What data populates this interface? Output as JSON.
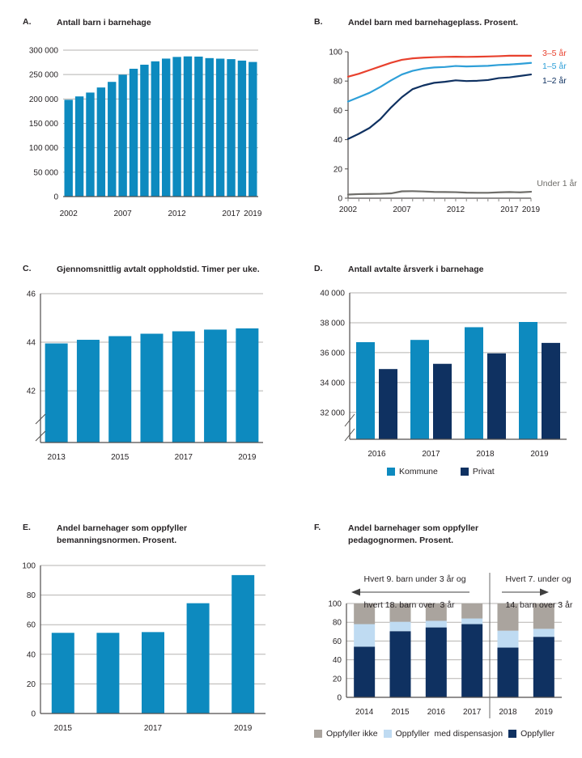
{
  "colors": {
    "bar_blue": "#0d8abf",
    "navy": "#0f3161",
    "red": "#e8412e",
    "light_blue_line": "#2e9fd8",
    "pale_blue": "#bfdbf2",
    "warm_gray": "#aaa49e",
    "gray_line": "#6e6d69",
    "grid": "#b5b3b1",
    "axis": "#514e4d",
    "text": "#272325"
  },
  "panels": [
    {
      "id": "A",
      "letter": "A.",
      "title": "Antall barn i barnehage"
    },
    {
      "id": "B",
      "letter": "B.",
      "title": "Andel barn med barnehageplass. Prosent."
    },
    {
      "id": "C",
      "letter": "C.",
      "title": "Gjennomsnittlig avtalt oppholdstid. Timer per uke."
    },
    {
      "id": "D",
      "letter": "D.",
      "title": "Antall avtalte årsverk i barnehage"
    },
    {
      "id": "E",
      "letter": "E.",
      "title": "Andel barnehager som oppfyller bemanningsnormen. Prosent."
    },
    {
      "id": "F",
      "letter": "F.",
      "title": "Andel barnehager som oppfyller pedagognormen. Prosent."
    }
  ],
  "chart_data": [
    {
      "id": "A",
      "type": "bar",
      "title": "Antall barn i barnehage",
      "categories": [
        "2002",
        "2003",
        "2004",
        "2005",
        "2006",
        "2007",
        "2008",
        "2009",
        "2010",
        "2011",
        "2012",
        "2013",
        "2014",
        "2015",
        "2016",
        "2017",
        "2018",
        "2019"
      ],
      "values": [
        198300,
        205200,
        213100,
        223500,
        235000,
        249700,
        261900,
        270200,
        277100,
        282700,
        286100,
        287200,
        286800,
        283700,
        282600,
        281600,
        278600,
        275800
      ],
      "ylim": [
        0,
        300000
      ],
      "ytick_values": [
        0,
        50000,
        100000,
        150000,
        200000,
        250000,
        300000
      ],
      "ytick_labels": [
        "0",
        "50 000",
        "100 000",
        "150 000",
        "200 000",
        "250 000",
        "300 000"
      ],
      "xtick_shown": [
        "2002",
        "2007",
        "2012",
        "2017",
        "2019"
      ],
      "grid": true,
      "bar_color_key": "bar_blue"
    },
    {
      "id": "B",
      "type": "line",
      "title": "Andel barn med barnehageplass. Prosent.",
      "x": [
        "2002",
        "2003",
        "2004",
        "2005",
        "2006",
        "2007",
        "2008",
        "2009",
        "2010",
        "2011",
        "2012",
        "2013",
        "2014",
        "2015",
        "2016",
        "2017",
        "2018",
        "2019"
      ],
      "series": [
        {
          "name": "3–5 år",
          "color": "#e8412e",
          "values": [
            83,
            85,
            87.5,
            90,
            92.5,
            94.5,
            95.5,
            96,
            96.3,
            96.5,
            96.6,
            96.5,
            96.6,
            96.8,
            97,
            97.3,
            97.3,
            97.3
          ]
        },
        {
          "name": "1–5 år",
          "color": "#2e9fd8",
          "values": [
            66,
            69,
            72,
            76,
            80.5,
            84.5,
            87,
            88.5,
            89.3,
            89.6,
            90.3,
            90,
            90.2,
            90.4,
            91,
            91.3,
            91.8,
            92.4
          ]
        },
        {
          "name": "1–2 år",
          "color": "#0f3161",
          "values": [
            40.5,
            44,
            48,
            54,
            62,
            69,
            74.5,
            77,
            78.8,
            79.5,
            80.5,
            80,
            80.2,
            80.7,
            82,
            82.5,
            83.5,
            84.5
          ]
        },
        {
          "name": "Under 1 år",
          "color": "#6e6d69",
          "values": [
            2.5,
            2.8,
            2.9,
            3,
            3.3,
            4.7,
            4.8,
            4.6,
            4.3,
            4.2,
            4.1,
            3.8,
            3.7,
            3.7,
            4,
            4.2,
            4,
            4.4
          ]
        }
      ],
      "ylim": [
        0,
        100
      ],
      "ytick_values": [
        0,
        20,
        40,
        60,
        80,
        100
      ],
      "xtick_shown": [
        "2002",
        "2007",
        "2012",
        "2017",
        "2019"
      ],
      "grid": false,
      "legend_position": "right-of-line-ends"
    },
    {
      "id": "C",
      "type": "bar",
      "title": "Gjennomsnittlig avtalt oppholdstid. Timer per uke.",
      "categories": [
        "2013",
        "2014",
        "2015",
        "2016",
        "2017",
        "2018",
        "2019"
      ],
      "values": [
        43.95,
        44.1,
        44.25,
        44.35,
        44.45,
        44.52,
        44.57
      ],
      "ylim": [
        42,
        46
      ],
      "axis_break": true,
      "ytick_values": [
        42,
        44,
        46
      ],
      "ytick_labels": [
        "42",
        "44",
        "46"
      ],
      "xtick_shown": [
        "2013",
        "2015",
        "2017",
        "2019"
      ],
      "grid": true,
      "bar_color_key": "bar_blue"
    },
    {
      "id": "D",
      "type": "grouped_bar",
      "title": "Antall avtalte årsverk i barnehage",
      "categories": [
        "2016",
        "2017",
        "2018",
        "2019"
      ],
      "series": [
        {
          "name": "Kommune",
          "color": "#0d8abf",
          "values": [
            36700,
            36850,
            37700,
            38050
          ]
        },
        {
          "name": "Privat",
          "color": "#0f3161",
          "values": [
            34900,
            35250,
            35950,
            36650
          ]
        }
      ],
      "ylim": [
        32000,
        40000
      ],
      "axis_break": true,
      "ytick_values": [
        32000,
        34000,
        36000,
        38000,
        40000
      ],
      "ytick_labels": [
        "32 000",
        "34 000",
        "36 000",
        "38 000",
        "40 000"
      ],
      "xtick_shown": [
        "2016",
        "2017",
        "2018",
        "2019"
      ],
      "grid": true,
      "legend_position": "bottom"
    },
    {
      "id": "E",
      "type": "bar",
      "title": "Andel barnehager som oppfyller bemanningsnormen. Prosent.",
      "categories": [
        "2015",
        "2016",
        "2017",
        "2018",
        "2019"
      ],
      "values": [
        54.5,
        54.5,
        55,
        74.5,
        93.5
      ],
      "ylim": [
        0,
        100
      ],
      "ytick_values": [
        0,
        20,
        40,
        60,
        80,
        100
      ],
      "xtick_shown": [
        "2015",
        "2017",
        "2019"
      ],
      "grid": true,
      "bar_color_key": "bar_blue"
    },
    {
      "id": "F",
      "type": "stacked_bar",
      "title": "Andel barnehager som oppfyller pedagognormen. Prosent.",
      "categories": [
        "2014",
        "2015",
        "2016",
        "2017",
        "2018",
        "2019"
      ],
      "series": [
        {
          "name": "Oppfyller",
          "color": "#0f3161",
          "values": [
            54,
            70.5,
            74.5,
            78,
            53,
            64.5
          ]
        },
        {
          "name": "Oppfyller  med dispensasjon",
          "color": "#bfdbf2",
          "values": [
            24,
            10,
            7,
            6,
            18,
            8.5
          ]
        },
        {
          "name": "Oppfyller ikke",
          "color": "#aaa49e",
          "values": [
            22,
            19.5,
            18.5,
            16,
            29,
            27
          ]
        }
      ],
      "ylim": [
        0,
        100
      ],
      "ytick_values": [
        0,
        20,
        40,
        60,
        80,
        100
      ],
      "xtick_shown": [
        "2014",
        "2015",
        "2016",
        "2017",
        "2018",
        "2019"
      ],
      "grid": true,
      "legend_position": "bottom",
      "annotations": {
        "left_lines": [
          "Hvert 9. barn under 3 år og",
          "hvert 18. barn over  3 år"
        ],
        "right_lines": [
          "Hvert 7. under og",
          "14. barn over 3 år"
        ],
        "divider_between": [
          "2017",
          "2018"
        ]
      }
    }
  ]
}
